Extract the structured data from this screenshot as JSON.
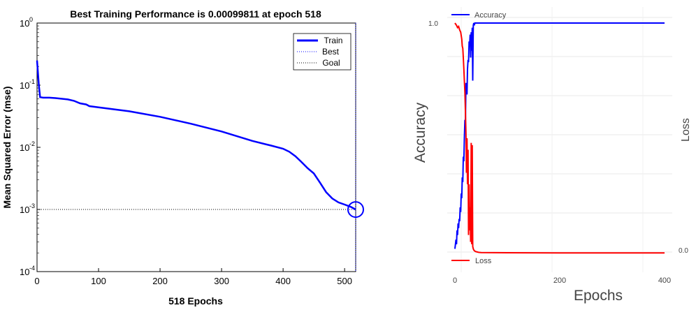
{
  "chart_data": [
    {
      "type": "line",
      "title": "Best Training Performance is 0.00099811 at epoch 518",
      "xlabel": "518 Epochs",
      "ylabel": "Mean Squared Error  (mse)",
      "x_ticks": [
        "0",
        "100",
        "200",
        "300",
        "400",
        "500"
      ],
      "y_tick_bases": [
        "10",
        "10",
        "10",
        "10",
        "10"
      ],
      "y_tick_exps": [
        "0",
        "-1",
        "-2",
        "-3",
        "-4"
      ],
      "xlim": [
        0,
        518
      ],
      "ylim": [
        0.0001,
        1
      ],
      "yscale": "log",
      "legend": {
        "placement": "top-right",
        "entries": [
          "Train",
          "Best",
          "Goal"
        ]
      },
      "colors": {
        "train": "#0000ff",
        "best": "#0000ff",
        "goal": "#000000"
      },
      "best": {
        "epoch": 518,
        "value": 0.00099811
      },
      "goal": 0.001,
      "series": [
        {
          "name": "Train",
          "x": [
            0,
            3,
            5,
            10,
            20,
            30,
            50,
            60,
            70,
            80,
            85,
            100,
            150,
            200,
            250,
            300,
            350,
            380,
            400,
            410,
            420,
            430,
            440,
            450,
            460,
            470,
            480,
            490,
            500,
            510,
            518
          ],
          "y": [
            0.25,
            0.1,
            0.064,
            0.063,
            0.063,
            0.062,
            0.059,
            0.056,
            0.051,
            0.049,
            0.046,
            0.044,
            0.038,
            0.031,
            0.024,
            0.018,
            0.0127,
            0.0107,
            0.0095,
            0.0085,
            0.0072,
            0.0058,
            0.0046,
            0.0038,
            0.0027,
            0.0019,
            0.0015,
            0.0013,
            0.0012,
            0.0011,
            0.00099811
          ]
        }
      ]
    },
    {
      "type": "line",
      "xlabel": "Epochs",
      "ylabel_left": "Accuracy",
      "ylabel_right": "Loss",
      "x_ticks": [
        "0",
        "200",
        "400"
      ],
      "left_tick_label": "1.0",
      "right_tick_label": "0.0",
      "xlim": [
        -20,
        420
      ],
      "ylim": [
        0,
        1
      ],
      "legend": {
        "top": "Accuracy",
        "bottom": "Loss"
      },
      "colors": {
        "accuracy": "#0000ff",
        "loss": "#ff0000"
      },
      "series": [
        {
          "name": "Accuracy",
          "x": [
            0,
            2,
            3,
            4,
            5,
            6,
            7,
            8,
            9,
            10,
            11,
            12,
            13,
            14,
            15,
            16,
            17,
            18,
            19,
            20,
            21,
            22,
            23,
            24,
            25,
            26,
            27,
            28,
            29,
            30,
            31,
            32,
            33,
            34,
            35,
            36,
            37,
            38,
            40,
            45,
            50,
            100,
            200,
            300,
            400
          ],
          "y": [
            0.02,
            0.06,
            0.04,
            0.1,
            0.08,
            0.13,
            0.11,
            0.15,
            0.14,
            0.2,
            0.18,
            0.26,
            0.24,
            0.33,
            0.31,
            0.42,
            0.4,
            0.5,
            0.58,
            0.56,
            0.74,
            0.72,
            0.69,
            0.8,
            0.84,
            0.83,
            0.92,
            0.9,
            0.95,
            0.85,
            0.96,
            0.88,
            0.98,
            0.75,
            0.99,
            1.0,
            0.99,
            1.0,
            1.0,
            1.0,
            1.0,
            1.0,
            1.0,
            1.0,
            1.0
          ]
        },
        {
          "name": "Loss",
          "x": [
            0,
            3,
            5,
            7,
            9,
            11,
            13,
            14,
            15,
            16,
            17,
            18,
            19,
            20,
            21,
            22,
            23,
            24,
            25,
            26,
            27,
            28,
            29,
            30,
            31,
            32,
            33,
            34,
            35,
            36,
            38,
            40,
            45,
            50,
            100,
            200,
            300,
            400
          ],
          "y": [
            1.0,
            0.99,
            0.98,
            0.985,
            0.97,
            0.96,
            0.93,
            0.9,
            0.89,
            0.85,
            0.8,
            0.75,
            0.7,
            0.62,
            0.52,
            0.35,
            0.5,
            0.3,
            0.45,
            0.08,
            0.3,
            0.1,
            0.2,
            0.05,
            0.48,
            0.04,
            0.47,
            0.03,
            0.02,
            0.015,
            0.01,
            0.008,
            0.005,
            0.004,
            0.003,
            0.002,
            0.002,
            0.002
          ]
        }
      ]
    }
  ]
}
